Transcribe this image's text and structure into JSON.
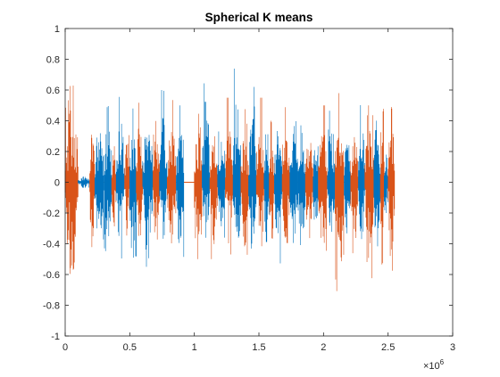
{
  "chart_data": {
    "type": "line",
    "title": "Spherical K means",
    "xlabel": "",
    "ylabel": "",
    "xlim": [
      0,
      3000000
    ],
    "ylim": [
      -1,
      1
    ],
    "x_ticks": [
      0,
      500000,
      1000000,
      1500000,
      2000000,
      2500000,
      3000000
    ],
    "x_tick_labels": [
      "0",
      "0.5",
      "1",
      "1.5",
      "2",
      "2.5",
      "3"
    ],
    "x_exponent_base": "×10",
    "x_exponent_power": "6",
    "y_ticks": [
      -1,
      -0.8,
      -0.6,
      -0.4,
      -0.2,
      0,
      0.2,
      0.4,
      0.6,
      0.8,
      1
    ],
    "y_tick_labels": [
      "-1",
      "-0.8",
      "-0.6",
      "-0.4",
      "-0.2",
      "0",
      "0.2",
      "0.4",
      "0.6",
      "0.8",
      "1"
    ],
    "grid": false,
    "colors": {
      "cluster_blue": "#0072BD",
      "cluster_orange": "#D95319",
      "axis": "#262626",
      "background": "#ffffff"
    },
    "signal_end": 2550000,
    "segments": [
      {
        "cluster": 2,
        "start": 0,
        "end": 100000,
        "amp_pos": 0.66,
        "amp_neg": -0.84
      },
      {
        "cluster": 1,
        "start": 100000,
        "end": 190000,
        "amp_pos": 0.05,
        "amp_neg": -0.05
      },
      {
        "cluster": 2,
        "start": 190000,
        "end": 230000,
        "amp_pos": 0.55,
        "amp_neg": -0.7
      },
      {
        "cluster": 1,
        "start": 230000,
        "end": 300000,
        "amp_pos": 0.5,
        "amp_neg": -0.55
      },
      {
        "cluster": 1,
        "start": 300000,
        "end": 360000,
        "amp_pos": 0.5,
        "amp_neg": -0.5
      },
      {
        "cluster": 2,
        "start": 360000,
        "end": 395000,
        "amp_pos": 0.35,
        "amp_neg": -0.4
      },
      {
        "cluster": 1,
        "start": 395000,
        "end": 460000,
        "amp_pos": 0.58,
        "amp_neg": -0.55
      },
      {
        "cluster": 2,
        "start": 460000,
        "end": 500000,
        "amp_pos": 0.45,
        "amp_neg": -0.5
      },
      {
        "cluster": 1,
        "start": 500000,
        "end": 550000,
        "amp_pos": 0.48,
        "amp_neg": -0.72
      },
      {
        "cluster": 2,
        "start": 550000,
        "end": 600000,
        "amp_pos": 0.53,
        "amp_neg": -0.55
      },
      {
        "cluster": 1,
        "start": 600000,
        "end": 680000,
        "amp_pos": 0.55,
        "amp_neg": -0.55
      },
      {
        "cluster": 2,
        "start": 680000,
        "end": 730000,
        "amp_pos": 0.6,
        "amp_neg": -0.55
      },
      {
        "cluster": 1,
        "start": 730000,
        "end": 790000,
        "amp_pos": 0.6,
        "amp_neg": -0.5
      },
      {
        "cluster": 2,
        "start": 790000,
        "end": 860000,
        "amp_pos": 0.55,
        "amp_neg": -0.6
      },
      {
        "cluster": 1,
        "start": 860000,
        "end": 920000,
        "amp_pos": 0.5,
        "amp_neg": -0.62
      },
      {
        "cluster": 2,
        "start": 1000000,
        "end": 1060000,
        "amp_pos": 0.45,
        "amp_neg": -0.82
      },
      {
        "cluster": 1,
        "start": 1060000,
        "end": 1120000,
        "amp_pos": 0.76,
        "amp_neg": -0.55
      },
      {
        "cluster": 2,
        "start": 1120000,
        "end": 1180000,
        "amp_pos": 0.45,
        "amp_neg": -0.55
      },
      {
        "cluster": 1,
        "start": 1180000,
        "end": 1240000,
        "amp_pos": 0.53,
        "amp_neg": -0.45
      },
      {
        "cluster": 2,
        "start": 1240000,
        "end": 1300000,
        "amp_pos": 0.55,
        "amp_neg": -0.55
      },
      {
        "cluster": 1,
        "start": 1300000,
        "end": 1360000,
        "amp_pos": 0.8,
        "amp_neg": -0.7
      },
      {
        "cluster": 2,
        "start": 1360000,
        "end": 1420000,
        "amp_pos": 0.48,
        "amp_neg": -0.6
      },
      {
        "cluster": 1,
        "start": 1420000,
        "end": 1480000,
        "amp_pos": 0.62,
        "amp_neg": -0.55
      },
      {
        "cluster": 2,
        "start": 1480000,
        "end": 1540000,
        "amp_pos": 0.55,
        "amp_neg": -0.7
      },
      {
        "cluster": 1,
        "start": 1540000,
        "end": 1580000,
        "amp_pos": 0.55,
        "amp_neg": -0.62
      },
      {
        "cluster": 2,
        "start": 1580000,
        "end": 1620000,
        "amp_pos": 0.4,
        "amp_neg": -0.55
      },
      {
        "cluster": 1,
        "start": 1620000,
        "end": 1680000,
        "amp_pos": 0.5,
        "amp_neg": -0.55
      },
      {
        "cluster": 2,
        "start": 1680000,
        "end": 1740000,
        "amp_pos": 0.5,
        "amp_neg": -0.62
      },
      {
        "cluster": 1,
        "start": 1740000,
        "end": 1800000,
        "amp_pos": 0.5,
        "amp_neg": -0.55
      },
      {
        "cluster": 1,
        "start": 1800000,
        "end": 1860000,
        "amp_pos": 0.6,
        "amp_neg": -0.6
      },
      {
        "cluster": 2,
        "start": 1860000,
        "end": 1920000,
        "amp_pos": 0.4,
        "amp_neg": -0.55
      },
      {
        "cluster": 1,
        "start": 1920000,
        "end": 1960000,
        "amp_pos": 0.48,
        "amp_neg": -0.55
      },
      {
        "cluster": 2,
        "start": 1960000,
        "end": 2030000,
        "amp_pos": 0.5,
        "amp_neg": -0.6
      },
      {
        "cluster": 1,
        "start": 2030000,
        "end": 2090000,
        "amp_pos": 0.55,
        "amp_neg": -0.45
      },
      {
        "cluster": 2,
        "start": 2090000,
        "end": 2160000,
        "amp_pos": 0.58,
        "amp_neg": -0.82
      },
      {
        "cluster": 1,
        "start": 2160000,
        "end": 2210000,
        "amp_pos": 0.5,
        "amp_neg": -0.5
      },
      {
        "cluster": 2,
        "start": 2210000,
        "end": 2270000,
        "amp_pos": 0.4,
        "amp_neg": -0.6
      },
      {
        "cluster": 1,
        "start": 2270000,
        "end": 2320000,
        "amp_pos": 0.55,
        "amp_neg": -0.55
      },
      {
        "cluster": 2,
        "start": 2320000,
        "end": 2390000,
        "amp_pos": 0.5,
        "amp_neg": -0.68
      },
      {
        "cluster": 1,
        "start": 2390000,
        "end": 2440000,
        "amp_pos": 0.6,
        "amp_neg": -0.6
      },
      {
        "cluster": 2,
        "start": 2440000,
        "end": 2470000,
        "amp_pos": 0.7,
        "amp_neg": -0.75
      },
      {
        "cluster": 1,
        "start": 2470000,
        "end": 2500000,
        "amp_pos": 0.18,
        "amp_neg": -0.2
      },
      {
        "cluster": 2,
        "start": 2500000,
        "end": 2550000,
        "amp_pos": 0.68,
        "amp_neg": -0.72
      }
    ]
  }
}
